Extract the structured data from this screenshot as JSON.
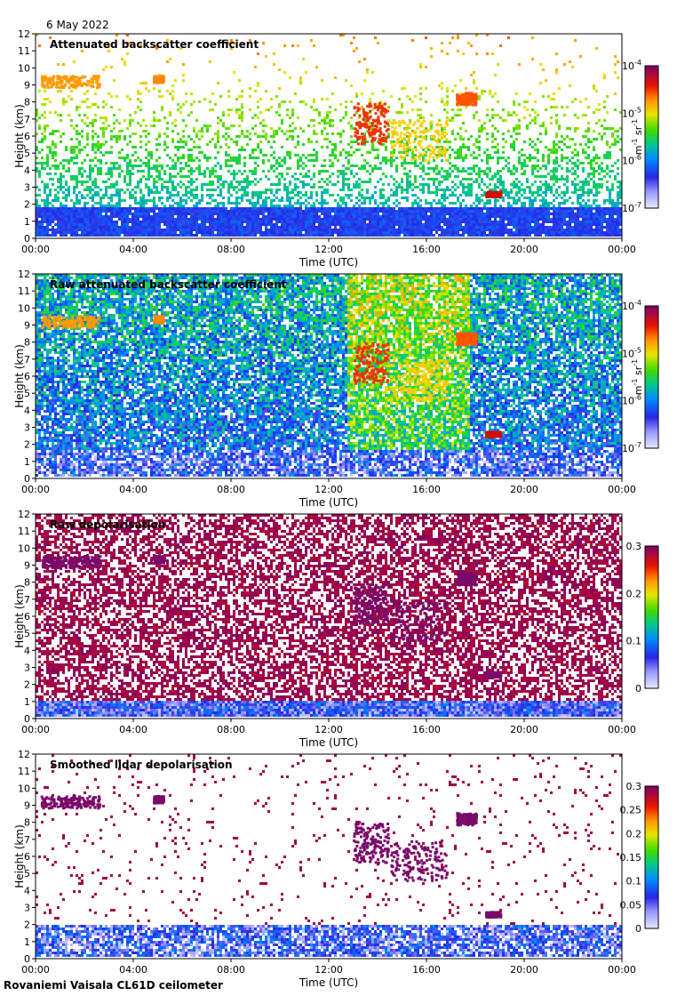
{
  "header": {
    "date": "6 May 2022"
  },
  "footer": {
    "instrument": "Rovaniemi Vaisala CL61D ceilometer"
  },
  "chart_data": [
    {
      "type": "heatmap",
      "title": "Attenuated backscatter coefficient",
      "xlabel": "Time (UTC)",
      "ylabel": "Height (km)",
      "xticks": [
        "00:00",
        "04:00",
        "08:00",
        "12:00",
        "16:00",
        "20:00",
        "00:00"
      ],
      "yticks": [
        "0",
        "1",
        "2",
        "3",
        "4",
        "5",
        "6",
        "7",
        "8",
        "9",
        "10",
        "11",
        "12"
      ],
      "ylim": [
        0,
        12
      ],
      "colorbar": {
        "scale": "log",
        "ticks": [
          {
            "base": "10",
            "exp": "-4"
          },
          {
            "base": "10",
            "exp": "-5"
          },
          {
            "base": "10",
            "exp": "-6"
          },
          {
            "base": "10",
            "exp": "-7"
          }
        ],
        "unit_parts": {
          "a": "m",
          "a_exp": "-1",
          "b": " sr",
          "b_exp": "-1"
        }
      },
      "background": "noise_masked"
    },
    {
      "type": "heatmap",
      "title": "Raw attenuated backscatter coefficient",
      "xlabel": "Time (UTC)",
      "ylabel": "Height (km)",
      "xticks": [
        "00:00",
        "04:00",
        "08:00",
        "12:00",
        "16:00",
        "20:00",
        "00:00"
      ],
      "yticks": [
        "0",
        "1",
        "2",
        "3",
        "4",
        "5",
        "6",
        "7",
        "8",
        "9",
        "10",
        "11",
        "12"
      ],
      "ylim": [
        0,
        12
      ],
      "colorbar": {
        "scale": "log",
        "ticks": [
          {
            "base": "10",
            "exp": "-4"
          },
          {
            "base": "10",
            "exp": "-5"
          },
          {
            "base": "10",
            "exp": "-6"
          },
          {
            "base": "10",
            "exp": "-7"
          }
        ],
        "unit_parts": {
          "a": "m",
          "a_exp": "-1",
          "b": " sr",
          "b_exp": "-1"
        }
      },
      "background": "noise_full"
    },
    {
      "type": "heatmap",
      "title": "Raw depolarisation",
      "xlabel": "Time (UTC)",
      "ylabel": "Height (km)",
      "xticks": [
        "00:00",
        "04:00",
        "08:00",
        "12:00",
        "16:00",
        "20:00",
        "00:00"
      ],
      "yticks": [
        "0",
        "1",
        "2",
        "3",
        "4",
        "5",
        "6",
        "7",
        "8",
        "9",
        "10",
        "11",
        "12"
      ],
      "ylim": [
        0,
        12
      ],
      "colorbar": {
        "scale": "linear",
        "ticks": [
          {
            "base": "0.3"
          },
          {
            "base": "0.2"
          },
          {
            "base": "0.1"
          },
          {
            "base": "0"
          }
        ]
      },
      "background": "depol_noise"
    },
    {
      "type": "heatmap",
      "title": "Smoothed lidar depolarisation",
      "xlabel": "Time (UTC)",
      "ylabel": "Height (km)",
      "xticks": [
        "00:00",
        "04:00",
        "08:00",
        "12:00",
        "16:00",
        "20:00",
        "00:00"
      ],
      "yticks": [
        "0",
        "1",
        "2",
        "3",
        "4",
        "5",
        "6",
        "7",
        "8",
        "9",
        "10",
        "11",
        "12"
      ],
      "ylim": [
        0,
        12
      ],
      "colorbar": {
        "scale": "linear",
        "ticks": [
          {
            "base": "0.3"
          },
          {
            "base": "0.25"
          },
          {
            "base": "0.2"
          },
          {
            "base": "0.15"
          },
          {
            "base": "0.1"
          },
          {
            "base": "0.05"
          },
          {
            "base": "0"
          }
        ]
      },
      "background": "depol_masked"
    }
  ]
}
